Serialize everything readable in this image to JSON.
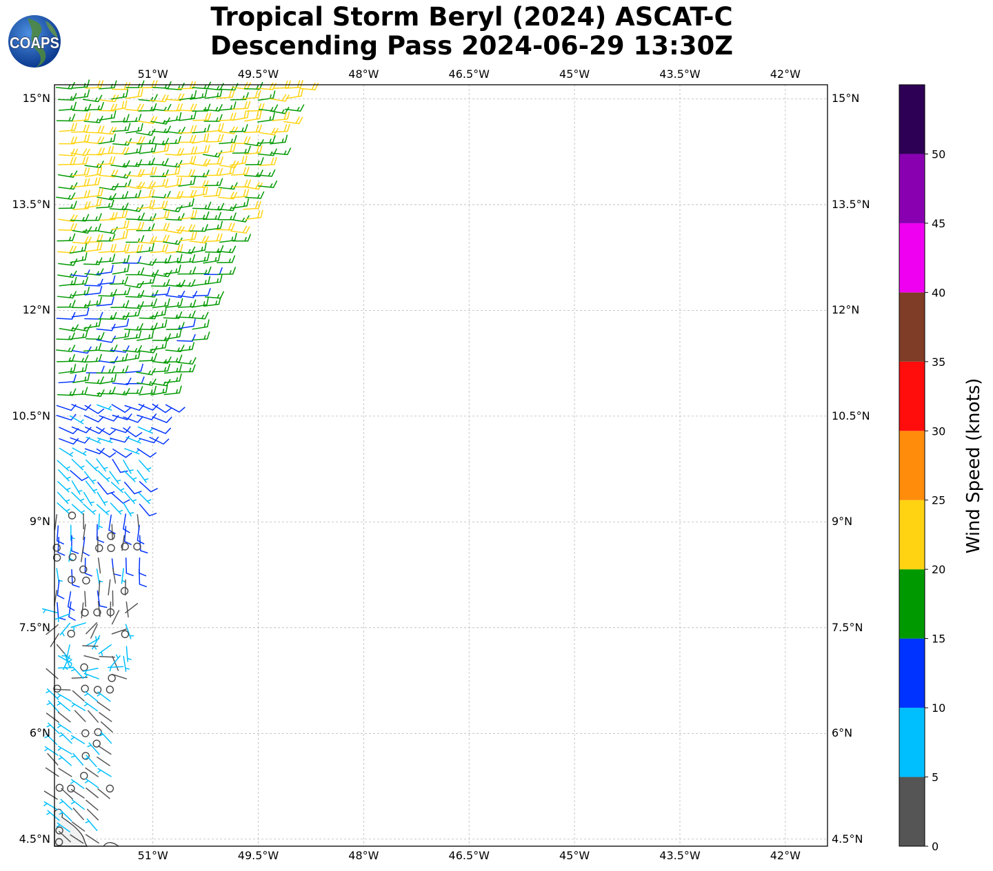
{
  "title": {
    "line1": "Tropical Storm Beryl (2024) ASCAT-C",
    "line2": "Descending Pass 2024-06-29 13:30Z"
  },
  "logo": {
    "text": "COAPS"
  },
  "map": {
    "projection": "PlateCarree",
    "lon_range": [
      -52.4,
      -41.4
    ],
    "lat_range": [
      4.4,
      15.2
    ],
    "lon_ticks": [
      {
        "value": -51.0,
        "label": "51°W"
      },
      {
        "value": -49.5,
        "label": "49.5°W"
      },
      {
        "value": -48.0,
        "label": "48°W"
      },
      {
        "value": -46.5,
        "label": "46.5°W"
      },
      {
        "value": -45.0,
        "label": "45°W"
      },
      {
        "value": -43.5,
        "label": "43.5°W"
      },
      {
        "value": -42.0,
        "label": "42°W"
      }
    ],
    "lat_ticks": [
      {
        "value": 15.0,
        "label": "15°N"
      },
      {
        "value": 13.5,
        "label": "13.5°N"
      },
      {
        "value": 12.0,
        "label": "12°N"
      },
      {
        "value": 10.5,
        "label": "10.5°N"
      },
      {
        "value": 9.0,
        "label": "9°N"
      },
      {
        "value": 7.5,
        "label": "7.5°N"
      },
      {
        "value": 6.0,
        "label": "6°N"
      },
      {
        "value": 4.5,
        "label": "4.5°N"
      }
    ],
    "gridlines": true,
    "swath": "ASCAT-C wind barbs, western edge of map from 4.4°N to 15.2°N"
  },
  "colorbar": {
    "label": "Wind Speed (knots)",
    "ticks": [
      0,
      5,
      10,
      15,
      20,
      25,
      30,
      35,
      40,
      45,
      50
    ],
    "bins": [
      {
        "min": 0,
        "max": 5,
        "color": "#555555"
      },
      {
        "min": 5,
        "max": 10,
        "color": "#00bfff"
      },
      {
        "min": 10,
        "max": 15,
        "color": "#0033ff"
      },
      {
        "min": 15,
        "max": 20,
        "color": "#009900"
      },
      {
        "min": 20,
        "max": 25,
        "color": "#ffd311"
      },
      {
        "min": 25,
        "max": 30,
        "color": "#ff8c0b"
      },
      {
        "min": 30,
        "max": 35,
        "color": "#ff0c0c"
      },
      {
        "min": 35,
        "max": 40,
        "color": "#7f3d28"
      },
      {
        "min": 40,
        "max": 45,
        "color": "#f000f0"
      },
      {
        "min": 45,
        "max": 50,
        "color": "#8800b0"
      },
      {
        "min": 50,
        "max": 55,
        "color": "#2d0055"
      }
    ]
  },
  "chart_data": {
    "type": "wind-barb map",
    "title": "Tropical Storm Beryl (2024) ASCAT-C Descending Pass 2024-06-29 13:30Z",
    "units": "knots",
    "wind_regions": [
      {
        "lat_min": 12.8,
        "lat_max": 15.2,
        "speed_kt": 20,
        "direction": "easterly",
        "note": "mix of yellow and green barbs"
      },
      {
        "lat_min": 10.8,
        "lat_max": 12.8,
        "speed_kt": 17,
        "direction": "easterly"
      },
      {
        "lat_min": 10.0,
        "lat_max": 10.8,
        "speed_kt": 12,
        "direction": "east-southeasterly"
      },
      {
        "lat_min": 9.2,
        "lat_max": 10.0,
        "speed_kt": 8,
        "direction": "southeasterly"
      },
      {
        "lat_min": 7.8,
        "lat_max": 9.2,
        "speed_kt": 4,
        "direction": "southerly",
        "note": "mix of gray, cyan and blue barbs"
      },
      {
        "lat_min": 6.6,
        "lat_max": 7.8,
        "speed_kt": 1,
        "direction": "calm",
        "note": "calm circles"
      },
      {
        "lat_min": 4.4,
        "lat_max": 6.6,
        "speed_kt": 5,
        "direction": "northwesterly"
      }
    ]
  }
}
